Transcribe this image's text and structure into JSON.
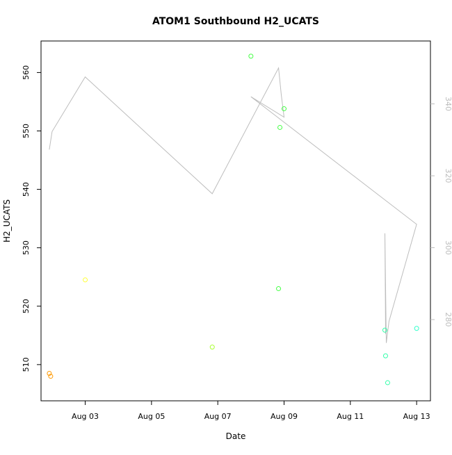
{
  "chart_data": {
    "type": "scatter",
    "title": "ATOM1 Southbound H2_UCATS",
    "xlabel": "Date",
    "ylabel": "H2_UCATS",
    "x_ticks": [
      "Aug 03",
      "Aug 05",
      "Aug 07",
      "Aug 09",
      "Aug 11",
      "Aug 13"
    ],
    "y_ticks": [
      510,
      520,
      530,
      540,
      550,
      560
    ],
    "y2_ticks": [
      280,
      300,
      320,
      340
    ],
    "xlim": [
      "2016-08-01T16:00",
      "2016-08-13T10:00"
    ],
    "ylim": [
      503.8,
      565.4
    ],
    "y2lim": [
      257.4,
      357.5
    ],
    "grid": false,
    "legend": "none",
    "colors": {
      "line": "#bdbdbd",
      "axis": "#000000",
      "right_axis": "#bdbdbd"
    },
    "series": [
      {
        "type": "points",
        "points": [
          {
            "x": "2016-08-01T22:00",
            "y": 508.5,
            "color": "#ff9900"
          },
          {
            "x": "2016-08-01T23:00",
            "y": 508.0,
            "color": "#ff9900"
          },
          {
            "x": "2016-08-03T00:00",
            "y": 524.5,
            "color": "#ffff33"
          },
          {
            "x": "2016-08-06T20:00",
            "y": 513.0,
            "color": "#aaff33"
          },
          {
            "x": "2016-08-08T00:00",
            "y": 562.8,
            "color": "#44ff44"
          },
          {
            "x": "2016-08-08T20:00",
            "y": 523.0,
            "color": "#44ff44"
          },
          {
            "x": "2016-08-08T21:00",
            "y": 550.6,
            "color": "#44ff44"
          },
          {
            "x": "2016-08-09T00:00",
            "y": 553.8,
            "color": "#44ff44"
          },
          {
            "x": "2016-08-12T01:00",
            "y": 515.9,
            "color": "#33ffaa"
          },
          {
            "x": "2016-08-12T01:30",
            "y": 511.5,
            "color": "#33ffaa"
          },
          {
            "x": "2016-08-12T03:00",
            "y": 506.9,
            "color": "#33ffaa"
          },
          {
            "x": "2016-08-13T00:00",
            "y": 516.2,
            "color": "#33ffcc"
          }
        ]
      },
      {
        "type": "line",
        "axis": "right",
        "points": [
          {
            "x": "2016-08-01T22:00",
            "y": 327.3
          },
          {
            "x": "2016-08-02T00:00",
            "y": 332.3
          },
          {
            "x": "2016-08-03T00:00",
            "y": 347.5
          },
          {
            "x": "2016-08-06T20:00",
            "y": 315.0
          },
          {
            "x": "2016-08-08T20:00",
            "y": 350.0
          },
          {
            "x": "2016-08-08T22:00",
            "y": 342.5
          },
          {
            "x": "2016-08-09T00:00",
            "y": 336.3
          },
          {
            "x": "2016-08-08T00:00",
            "y": 342.0
          },
          {
            "x": "2016-08-13T00:00",
            "y": 306.5
          },
          {
            "x": "2016-08-12T04:00",
            "y": 279.5
          },
          {
            "x": "2016-08-12T02:00",
            "y": 273.5
          },
          {
            "x": "2016-08-12T01:00",
            "y": 304.0
          },
          {
            "x": "2016-08-12T01:30",
            "y": 276.0
          }
        ]
      }
    ]
  }
}
